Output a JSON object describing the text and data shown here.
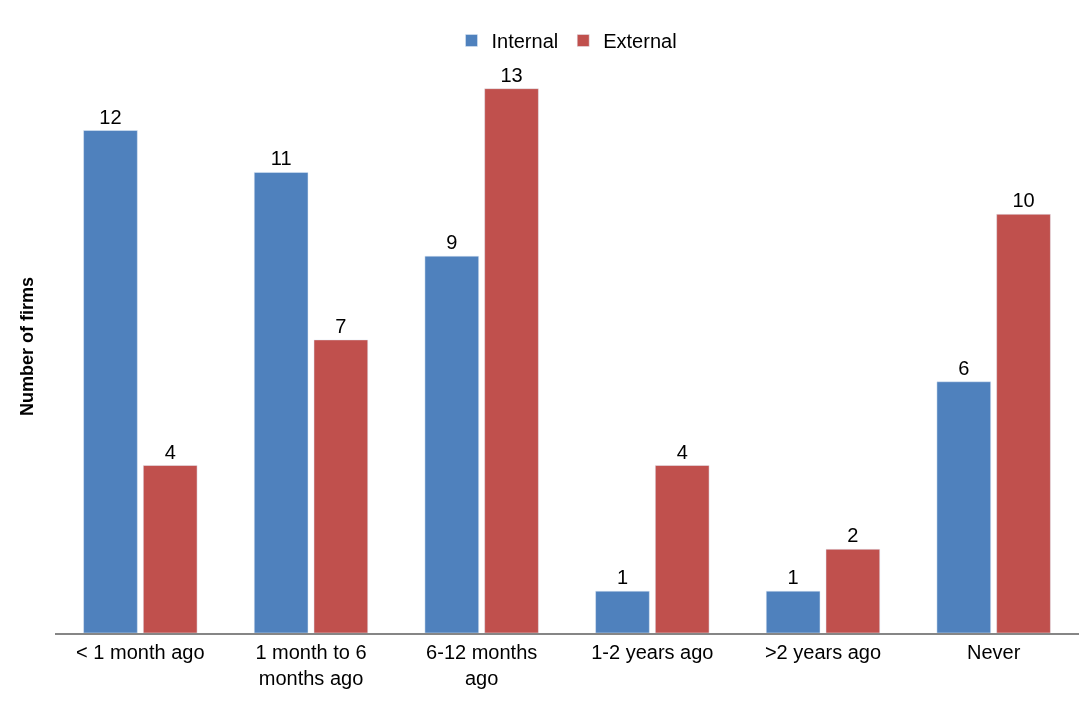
{
  "chart_data": {
    "type": "bar",
    "ylabel": "Number of firms",
    "categories": [
      "< 1 month ago",
      "1 month to 6 months ago",
      "6-12 months ago",
      "1-2 years ago",
      ">2 years ago",
      "Never"
    ],
    "series": [
      {
        "name": "Internal",
        "color": "#4f81bd",
        "values": [
          12,
          11,
          9,
          1,
          1,
          6
        ]
      },
      {
        "name": "External",
        "color": "#c0504d",
        "values": [
          4,
          7,
          13,
          4,
          2,
          10
        ]
      }
    ],
    "data_labels": true,
    "legend": "top",
    "tick_labels": "x"
  }
}
